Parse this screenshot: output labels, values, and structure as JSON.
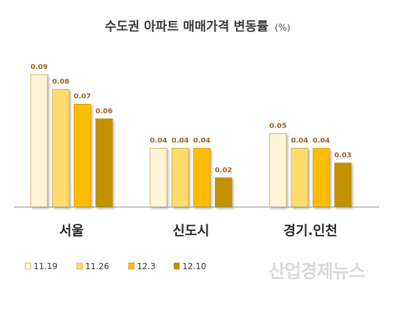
{
  "chart_data": {
    "type": "bar",
    "title": "수도권 아파트 매매가격 변동률",
    "title_unit": "(%)",
    "categories": [
      "서울",
      "신도시",
      "경기.인천"
    ],
    "series": [
      {
        "name": "11.19",
        "values": [
          0.09,
          0.04,
          0.05
        ],
        "color": "#fff4d6"
      },
      {
        "name": "11.26",
        "values": [
          0.08,
          0.04,
          0.04
        ],
        "color": "#ffdb6e"
      },
      {
        "name": "12.3",
        "values": [
          0.07,
          0.04,
          0.04
        ],
        "color": "#fcbc00"
      },
      {
        "name": "12.10",
        "values": [
          0.06,
          0.02,
          0.03
        ],
        "color": "#c39000"
      }
    ],
    "value_labels": [
      [
        "0.09",
        "0.04",
        "0.05"
      ],
      [
        "0.08",
        "0.04",
        "0.04"
      ],
      [
        "0.07",
        "0.04",
        "0.04"
      ],
      [
        "0.06",
        "0.02",
        "0.03"
      ]
    ],
    "ylim": [
      0,
      0.09
    ],
    "grid": false,
    "legend_position": "bottom-left",
    "axis_color": "#888888",
    "label_color": "#a0622a"
  },
  "watermark": "산업경제뉴스"
}
